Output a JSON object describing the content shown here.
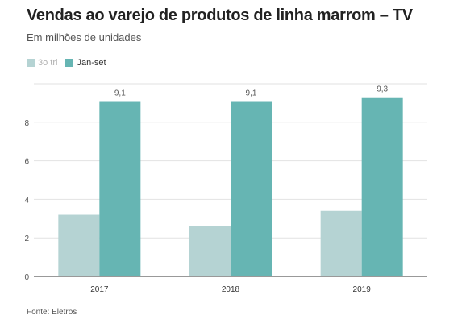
{
  "title": "Vendas ao varejo de produtos de linha marrom – TV",
  "subtitle": "Em milhões de unidades",
  "source": "Fonte: Eletros",
  "colors": {
    "series_3tri": "#b5d3d3",
    "series_janset": "#66b5b3",
    "grid": "#e2e2e2",
    "axis": "#333333",
    "text": "#333333"
  },
  "chart_data": {
    "type": "bar",
    "categories": [
      "2017",
      "2018",
      "2019"
    ],
    "series": [
      {
        "name": "3o tri",
        "values": [
          3.2,
          2.6,
          3.4
        ]
      },
      {
        "name": "Jan-set",
        "values": [
          9.1,
          9.1,
          9.3
        ]
      }
    ],
    "data_labels": {
      "Jan-set": [
        "9,1",
        "9,1",
        "9,3"
      ]
    },
    "y_ticks": [
      0,
      2,
      4,
      6,
      8
    ],
    "y_tick_labels": [
      "0",
      "2",
      "4",
      "6",
      "8"
    ],
    "ylim": [
      0,
      10
    ],
    "grid": true,
    "legend_position": "top-left",
    "title": "Vendas ao varejo de produtos de linha marrom – TV",
    "subtitle": "Em milhões de unidades",
    "xlabel": "",
    "ylabel": ""
  }
}
